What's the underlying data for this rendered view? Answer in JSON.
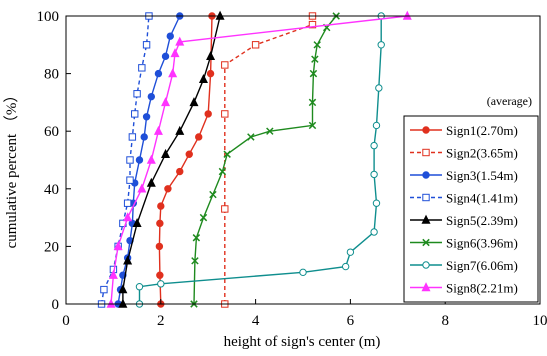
{
  "chart_data": {
    "type": "line",
    "xlabel": "height of sign's center (m)",
    "ylabel": "cumulative percent （%）",
    "xlim": [
      0,
      10
    ],
    "ylim": [
      0,
      100
    ],
    "x_ticks": [
      "0",
      "2",
      "4",
      "6",
      "8",
      "10"
    ],
    "y_ticks": [
      "0",
      "20",
      "40",
      "60",
      "80",
      "100"
    ],
    "grid": false,
    "legend_position": "right",
    "annotation": "(average)",
    "series": [
      {
        "name": "Sign1(2.70m)",
        "color": "#e0301e",
        "dash": false,
        "marker": "filled-circle",
        "points": [
          [
            2.0,
            0
          ],
          [
            1.98,
            10
          ],
          [
            1.97,
            20
          ],
          [
            1.98,
            28
          ],
          [
            2.0,
            34
          ],
          [
            2.15,
            40
          ],
          [
            2.4,
            46
          ],
          [
            2.6,
            52
          ],
          [
            2.8,
            58
          ],
          [
            3.0,
            66
          ],
          [
            3.05,
            80
          ],
          [
            3.08,
            100
          ]
        ]
      },
      {
        "name": "Sign2(3.65m)",
        "color": "#e0301e",
        "dash": true,
        "marker": "open-square",
        "points": [
          [
            3.35,
            0
          ],
          [
            3.35,
            33
          ],
          [
            3.35,
            66
          ],
          [
            3.35,
            83
          ],
          [
            4.0,
            90
          ],
          [
            5.2,
            97
          ],
          [
            5.2,
            100
          ]
        ]
      },
      {
        "name": "Sign3(1.54m)",
        "color": "#1f4fd8",
        "dash": false,
        "marker": "filled-circle",
        "points": [
          [
            1.1,
            0
          ],
          [
            1.15,
            5
          ],
          [
            1.2,
            10
          ],
          [
            1.3,
            16
          ],
          [
            1.35,
            22
          ],
          [
            1.4,
            28
          ],
          [
            1.42,
            35
          ],
          [
            1.45,
            42
          ],
          [
            1.55,
            50
          ],
          [
            1.65,
            58
          ],
          [
            1.7,
            65
          ],
          [
            1.8,
            72
          ],
          [
            1.95,
            80
          ],
          [
            2.1,
            86
          ],
          [
            2.2,
            93
          ],
          [
            2.4,
            100
          ]
        ]
      },
      {
        "name": "Sign4(1.41m)",
        "color": "#1f4fd8",
        "dash": true,
        "marker": "open-square",
        "points": [
          [
            0.75,
            0
          ],
          [
            0.8,
            5
          ],
          [
            1.0,
            12
          ],
          [
            1.1,
            20
          ],
          [
            1.2,
            28
          ],
          [
            1.3,
            35
          ],
          [
            1.35,
            43
          ],
          [
            1.35,
            50
          ],
          [
            1.4,
            58
          ],
          [
            1.45,
            66
          ],
          [
            1.5,
            73
          ],
          [
            1.6,
            82
          ],
          [
            1.7,
            90
          ],
          [
            1.75,
            100
          ]
        ]
      },
      {
        "name": "Sign5(2.39m)",
        "color": "#000000",
        "dash": false,
        "marker": "filled-triangle",
        "points": [
          [
            1.2,
            0
          ],
          [
            1.2,
            5
          ],
          [
            1.3,
            15
          ],
          [
            1.5,
            28
          ],
          [
            1.8,
            42
          ],
          [
            2.1,
            52
          ],
          [
            2.4,
            60
          ],
          [
            2.7,
            70
          ],
          [
            2.9,
            78
          ],
          [
            3.05,
            86
          ],
          [
            3.25,
            100
          ]
        ]
      },
      {
        "name": "Sign6(3.96m)",
        "color": "#1e8a1e",
        "dash": false,
        "marker": "x",
        "points": [
          [
            2.7,
            0
          ],
          [
            2.72,
            15
          ],
          [
            2.75,
            23
          ],
          [
            2.9,
            30
          ],
          [
            3.1,
            38
          ],
          [
            3.3,
            46
          ],
          [
            3.4,
            52
          ],
          [
            3.9,
            58
          ],
          [
            4.3,
            60
          ],
          [
            5.2,
            62
          ],
          [
            5.2,
            70
          ],
          [
            5.22,
            80
          ],
          [
            5.25,
            85
          ],
          [
            5.3,
            90
          ],
          [
            5.5,
            96
          ],
          [
            5.7,
            100
          ]
        ]
      },
      {
        "name": "Sign7(6.06m)",
        "color": "#0f8e8e",
        "dash": false,
        "marker": "open-circle",
        "points": [
          [
            1.55,
            0
          ],
          [
            1.55,
            6
          ],
          [
            2.0,
            7
          ],
          [
            5.0,
            11
          ],
          [
            5.9,
            13
          ],
          [
            6.0,
            18
          ],
          [
            6.5,
            25
          ],
          [
            6.55,
            35
          ],
          [
            6.5,
            45
          ],
          [
            6.5,
            55
          ],
          [
            6.55,
            62
          ],
          [
            6.6,
            75
          ],
          [
            6.65,
            90
          ],
          [
            6.65,
            100
          ]
        ]
      },
      {
        "name": "Sign8(2.21m)",
        "color": "#ff33ff",
        "dash": false,
        "marker": "filled-triangle",
        "points": [
          [
            0.95,
            0
          ],
          [
            1.0,
            10
          ],
          [
            1.1,
            20
          ],
          [
            1.3,
            30
          ],
          [
            1.6,
            40
          ],
          [
            1.8,
            50
          ],
          [
            1.95,
            60
          ],
          [
            2.1,
            70
          ],
          [
            2.25,
            80
          ],
          [
            2.3,
            87
          ],
          [
            2.4,
            91
          ],
          [
            7.2,
            100
          ]
        ]
      }
    ]
  }
}
